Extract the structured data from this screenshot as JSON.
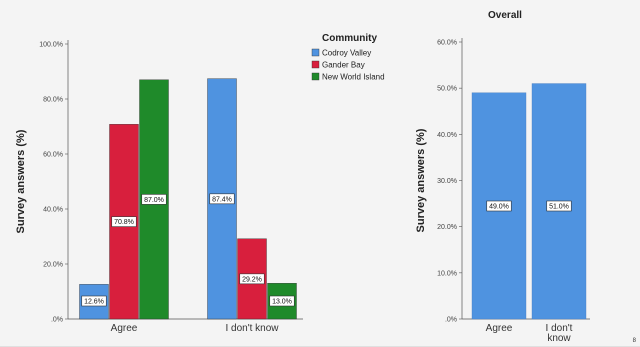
{
  "page_number": "8",
  "colors": {
    "codroy_valley": "#4f93e0",
    "gander_bay": "#d81f3d",
    "new_world_island": "#1f8a2a",
    "overall": "#4f93e0"
  },
  "chart_data": [
    {
      "type": "bar",
      "title": "",
      "ylabel": "Survey answers (%)",
      "xlabel": "",
      "categories": [
        "Agree",
        "I don't know"
      ],
      "legend": {
        "title": "Community",
        "placement": "top-right"
      },
      "ylim": [
        0,
        100
      ],
      "yticks": [
        0,
        20,
        40,
        60,
        80,
        100
      ],
      "ytick_labels": [
        ".0%",
        "20.0%",
        "40.0%",
        "60.0%",
        "80.0%",
        "100.0%"
      ],
      "series": [
        {
          "name": "Codroy Valley",
          "values": [
            12.6,
            87.4
          ],
          "labels": [
            "12.6%",
            "87.4%"
          ]
        },
        {
          "name": "Gander Bay",
          "values": [
            70.8,
            29.2
          ],
          "labels": [
            "70.8%",
            "29.2%"
          ]
        },
        {
          "name": "New World Island",
          "values": [
            87.0,
            13.0
          ],
          "labels": [
            "87.0%",
            "13.0%"
          ]
        }
      ],
      "grid": false
    },
    {
      "type": "bar",
      "title": "Overall",
      "ylabel": "Survey answers (%)",
      "xlabel": "",
      "categories": [
        "Agree",
        "I don't\nknow"
      ],
      "ylim": [
        0,
        60
      ],
      "yticks": [
        0,
        10,
        20,
        30,
        40,
        50,
        60
      ],
      "ytick_labels": [
        ".0%",
        "10.0%",
        "20.0%",
        "30.0%",
        "40.0%",
        "50.0%",
        "60.0%"
      ],
      "values": [
        49.0,
        51.0
      ],
      "labels": [
        "49.0%",
        "51.0%"
      ],
      "grid": false
    }
  ]
}
